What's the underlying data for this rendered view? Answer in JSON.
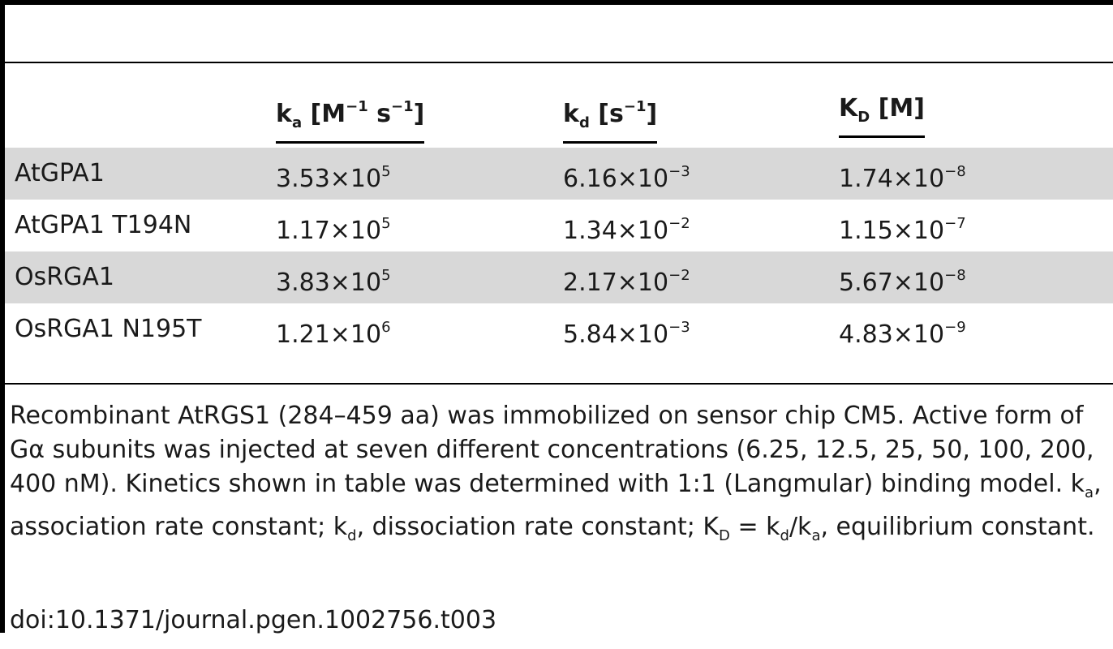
{
  "table": {
    "headers": {
      "ka": {
        "base": "k",
        "sub": "a",
        "unit_pre": " [M",
        "sup1": "−1",
        "unit_mid": " s",
        "sup2": "−1",
        "unit_post": "]"
      },
      "kd": {
        "base": "k",
        "sub": "d",
        "unit_pre": " [s",
        "sup1": "−1",
        "unit_post": "]"
      },
      "KD": {
        "base": "K",
        "sub": "D",
        "unit_post": " [M]"
      }
    },
    "rows": [
      {
        "name": "AtGPA1",
        "ka": {
          "m": "3.53",
          "e": "5"
        },
        "kd": {
          "m": "6.16",
          "e": "−3"
        },
        "KD": {
          "m": "1.74",
          "e": "−8"
        }
      },
      {
        "name": "AtGPA1 T194N",
        "ka": {
          "m": "1.17",
          "e": "5"
        },
        "kd": {
          "m": "1.34",
          "e": "−2"
        },
        "KD": {
          "m": "1.15",
          "e": "−7"
        }
      },
      {
        "name": "OsRGA1",
        "ka": {
          "m": "3.83",
          "e": "5"
        },
        "kd": {
          "m": "2.17",
          "e": "−2"
        },
        "KD": {
          "m": "5.67",
          "e": "−8"
        }
      },
      {
        "name": "OsRGA1 N195T",
        "ka": {
          "m": "1.21",
          "e": "6"
        },
        "kd": {
          "m": "5.84",
          "e": "−3"
        },
        "KD": {
          "m": "4.83",
          "e": "−9"
        }
      }
    ],
    "times_sign": "×10"
  },
  "caption": {
    "part1": "Recombinant AtRGS1 (284–459 aa) was immobilized on sensor chip CM5. Active form of G",
    "alpha": "α",
    "part2": " subunits was injected at seven different concentrations (6.25, 12.5, 25, 50, 100, 200, 400 nM). Kinetics shown in table was determined with 1:1 (Langmular) binding model. k",
    "sub_a": "a",
    "part3": ", association rate constant; k",
    "sub_d": "d",
    "part4": ", dissociation rate constant; K",
    "sub_D": "D",
    "part5": " = k",
    "sub_d2": "d",
    "part6": "/k",
    "sub_a2": "a",
    "part7": ", equilibrium constant."
  },
  "doi": "doi:10.1371/journal.pgen.1002756.t003"
}
